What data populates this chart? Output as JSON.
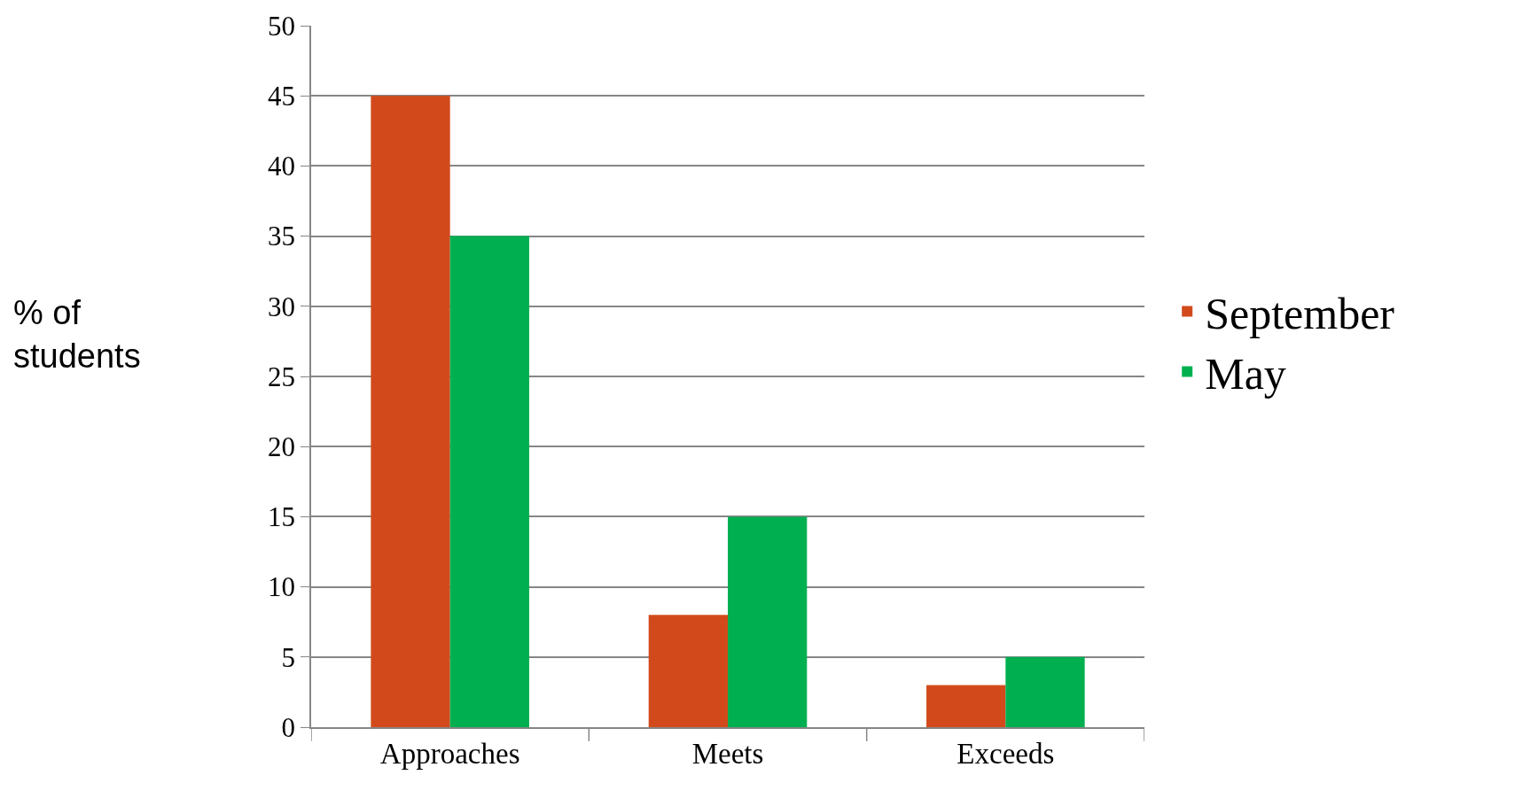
{
  "chart_data": {
    "type": "bar",
    "ylabel": "% of\nstudents",
    "categories": [
      "Approaches",
      "Meets",
      "Exceeds"
    ],
    "series": [
      {
        "name": "September",
        "color": "#d24a1b",
        "values": [
          45,
          8,
          3
        ]
      },
      {
        "name": "May",
        "color": "#00b050",
        "values": [
          35,
          15,
          5
        ]
      }
    ],
    "ylim": [
      0,
      50
    ],
    "yticks": [
      0,
      5,
      10,
      15,
      20,
      25,
      30,
      35,
      40,
      45,
      50
    ],
    "grid": "y",
    "legend": "right"
  }
}
